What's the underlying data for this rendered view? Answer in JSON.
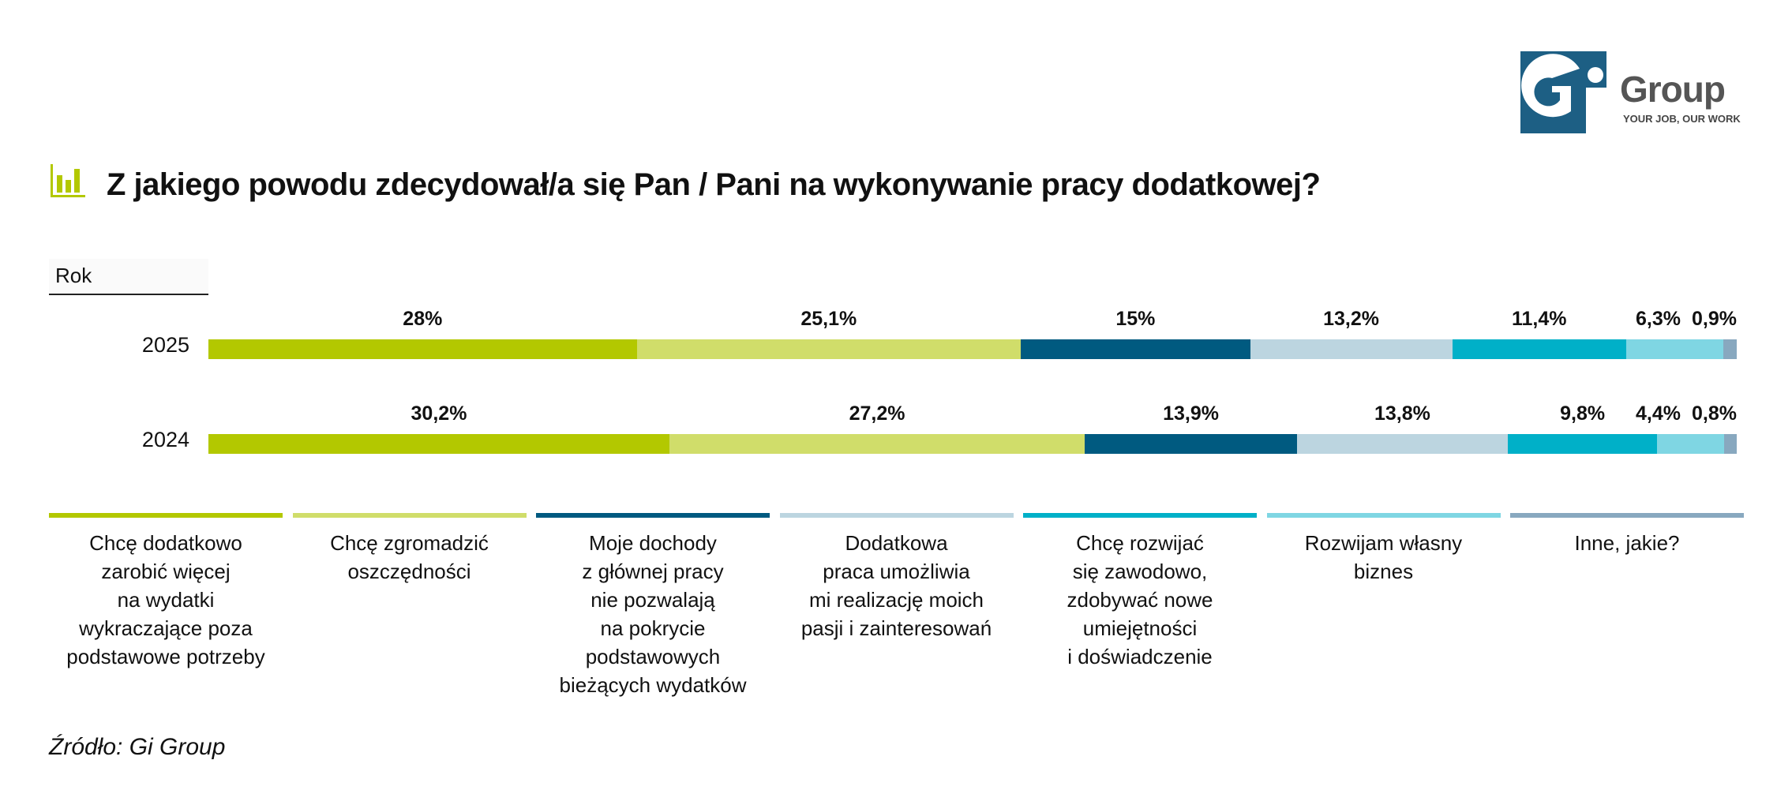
{
  "logo": {
    "name": "Group",
    "tagline": "YOUR JOB, OUR WORK",
    "mark": "Gi"
  },
  "title": "Z jakiego powodu zdecydował/a się Pan / Pani na wykonywanie pracy dodatkowej?",
  "source": "Źródło: Gi Group",
  "chart_data": {
    "type": "bar",
    "orientation": "horizontal-stacked-100",
    "title": "Z jakiego powodu zdecydował/a się Pan / Pani na wykonywanie pracy dodatkowej?",
    "ylabel": "Rok",
    "categories": [
      "2025",
      "2024"
    ],
    "series": [
      {
        "name": "Chcę dodatkowo zarobić więcej na wydatki wykraczające poza podstawowe potrzeby",
        "label": "Chcę dodatkowo\nzarobić więcej\nna wydatki\nwykraczające poza\npodstawowe potrzeby",
        "color": "#b3c800",
        "values": [
          28,
          30.2
        ],
        "labels": [
          "28%",
          "30,2%"
        ]
      },
      {
        "name": "Chcę zgromadzić oszczędności",
        "label": "Chcę zgromadzić\noszczędności",
        "color": "#d0dd6a",
        "values": [
          25.1,
          27.2
        ],
        "labels": [
          "25,1%",
          "27,2%"
        ]
      },
      {
        "name": "Moje dochody z głównej pracy nie pozwalają na pokrycie podstawowych bieżących wydatków",
        "label": "Moje dochody\nz głównej pracy\nnie pozwalają\nna pokrycie\npodstawowych\nbieżących wydatków",
        "color": "#005a80",
        "values": [
          15,
          13.9
        ],
        "labels": [
          "15%",
          "13,9%"
        ]
      },
      {
        "name": "Dodatkowa praca umożliwia mi realizację moich pasji i zainteresowań",
        "label": "Dodatkowa\npraca umożliwia\nmi realizację moich\npasji i zainteresowań",
        "color": "#bcd5e0",
        "values": [
          13.2,
          13.8
        ],
        "labels": [
          "13,2%",
          "13,8%"
        ]
      },
      {
        "name": "Chcę rozwijać się zawodowo, zdobywać nowe umiejętności i doświadczenie",
        "label": "Chcę rozwijać\nsię zawodowo,\nzdobywać nowe\numiejętności\ni doświadczenie",
        "color": "#00b0c8",
        "values": [
          11.4,
          9.8
        ],
        "labels": [
          "11,4%",
          "9,8%"
        ]
      },
      {
        "name": "Rozwijam własny biznes",
        "label": "Rozwijam własny\nbiznes",
        "color": "#7fd6e3",
        "values": [
          6.3,
          4.4
        ],
        "labels": [
          "6,3%",
          "4,4%"
        ]
      },
      {
        "name": "Inne, jakie?",
        "label": "Inne, jakie?",
        "color": "#88a8bf",
        "values": [
          0.9,
          0.8
        ],
        "labels": [
          "0,9%",
          "0,8%"
        ]
      }
    ],
    "legend": "bottom"
  }
}
